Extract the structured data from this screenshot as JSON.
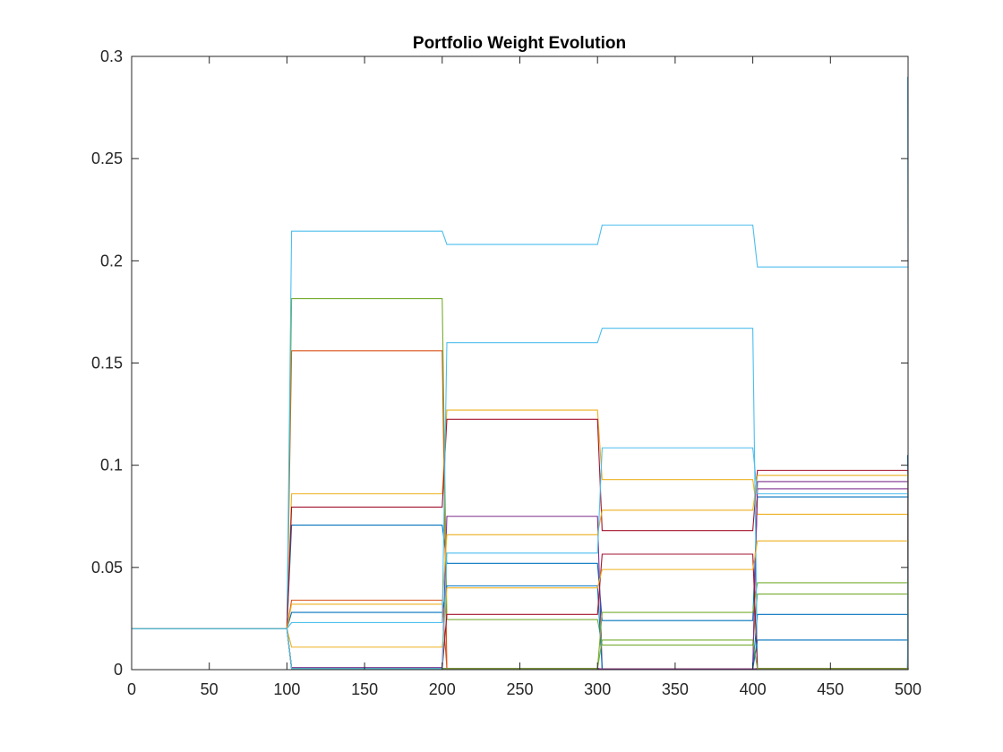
{
  "chart_data": {
    "type": "line",
    "title": "Portfolio Weight Evolution",
    "xlabel": "",
    "ylabel": "",
    "xlim": [
      0,
      500
    ],
    "ylim": [
      0,
      0.3
    ],
    "xticks": [
      0,
      50,
      100,
      150,
      200,
      250,
      300,
      350,
      400,
      450,
      500
    ],
    "yticks": [
      0,
      0.05,
      0.1,
      0.15,
      0.2,
      0.25,
      0.3
    ],
    "ytick_labels": [
      "0",
      "0.05",
      "0.1",
      "0.15",
      "0.2",
      "0.25",
      "0.3"
    ],
    "grid": false,
    "legend": "none",
    "period_breaks": [
      0,
      100,
      200,
      300,
      400,
      500
    ],
    "series": [
      {
        "color": "#0072BD",
        "weights": [
          0.02,
          0.0707,
          0.052,
          0.024,
          0.0845,
          0.105
        ]
      },
      {
        "color": "#D95319",
        "weights": [
          0.02,
          0.156,
          0.0005,
          0.0003,
          0.0005,
          0.001
        ]
      },
      {
        "color": "#EDB120",
        "weights": [
          0.02,
          0.086,
          0.127,
          0.093,
          0.076,
          0.001
        ]
      },
      {
        "color": "#7E2F8E",
        "weights": [
          0.02,
          0.001,
          0.075,
          0.0003,
          0.092,
          0.001
        ]
      },
      {
        "color": "#77AC30",
        "weights": [
          0.02,
          0.1815,
          0.0245,
          0.012,
          0.037,
          0.001
        ]
      },
      {
        "color": "#4DBEEE",
        "weights": [
          0.02,
          0.2145,
          0.208,
          0.2175,
          0.197,
          0.29
        ]
      },
      {
        "color": "#A2142F",
        "weights": [
          0.02,
          0.0795,
          0.1225,
          0.068,
          0.0975,
          0.001
        ]
      },
      {
        "color": "#0072BD",
        "weights": [
          0.02,
          0.028,
          0.041,
          0.0003,
          0.027,
          0.001
        ]
      },
      {
        "color": "#D95319",
        "weights": [
          0.02,
          0.034,
          0.0005,
          0.0003,
          0.0005,
          0.001
        ]
      },
      {
        "color": "#EDB120",
        "weights": [
          0.02,
          0.032,
          0.066,
          0.078,
          0.095,
          0.001
        ]
      },
      {
        "color": "#7E2F8E",
        "weights": [
          0.02,
          0.0005,
          0.0005,
          0.0003,
          0.0885,
          0.001
        ]
      },
      {
        "color": "#77AC30",
        "weights": [
          0.02,
          0.0005,
          0.0005,
          0.028,
          0.0425,
          0.001
        ]
      },
      {
        "color": "#4DBEEE",
        "weights": [
          0.02,
          0.023,
          0.16,
          0.167,
          0.0005,
          0.001
        ]
      },
      {
        "color": "#A2142F",
        "weights": [
          0.02,
          0.0005,
          0.027,
          0.0565,
          0.0005,
          0.001
        ]
      },
      {
        "color": "#0072BD",
        "weights": [
          0.02,
          0.0005,
          0.0005,
          0.0003,
          0.0145,
          0.001
        ]
      },
      {
        "color": "#D95319",
        "weights": [
          0.02,
          0.0005,
          0.0005,
          0.0003,
          0.0005,
          0.001
        ]
      },
      {
        "color": "#EDB120",
        "weights": [
          0.02,
          0.011,
          0.04,
          0.049,
          0.063,
          0.001
        ]
      },
      {
        "color": "#7E2F8E",
        "weights": [
          0.02,
          0.0005,
          0.0005,
          0.0003,
          0.0005,
          0.001
        ]
      },
      {
        "color": "#77AC30",
        "weights": [
          0.02,
          0.0005,
          0.0005,
          0.0145,
          0.0005,
          0.001
        ]
      },
      {
        "color": "#4DBEEE",
        "weights": [
          0.02,
          0.0005,
          0.057,
          0.1085,
          0.086,
          0.001
        ]
      }
    ]
  }
}
